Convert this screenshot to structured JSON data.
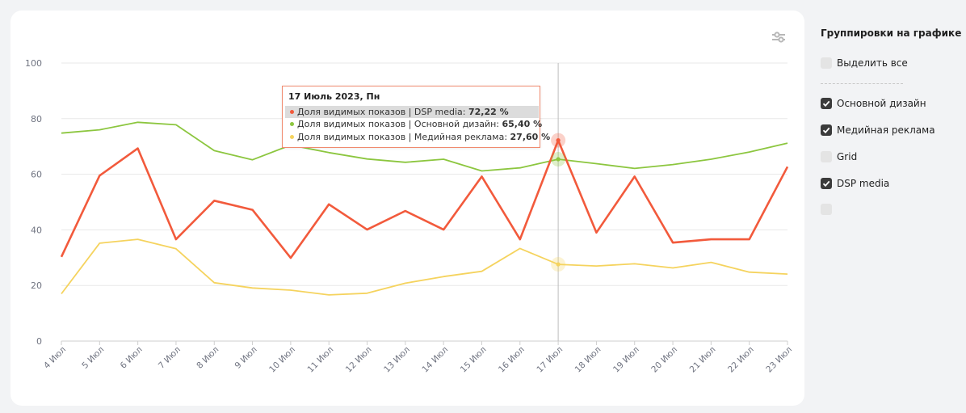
{
  "chart_data": {
    "type": "line",
    "categories": [
      "4 Июл",
      "5 Июл",
      "6 Июл",
      "7 Июл",
      "8 Июл",
      "9 Июл",
      "10 Июл",
      "11 Июл",
      "12 Июл",
      "13 Июл",
      "14 Июл",
      "15 Июл",
      "16 Июл",
      "17 Июл",
      "18 Июл",
      "19 Июл",
      "20 Июл",
      "21 Июл",
      "22 Июл",
      "23 Июл"
    ],
    "ylim": [
      0,
      100
    ],
    "yticks": [
      0,
      20,
      40,
      60,
      80,
      100
    ],
    "grid": true,
    "highlight_index": 13,
    "series": [
      {
        "name": "Основной дизайн",
        "color": "#8cc63f",
        "width": 1.8,
        "values": [
          74.8,
          76.0,
          78.7,
          77.8,
          68.5,
          65.2,
          70.5,
          67.8,
          65.5,
          64.3,
          65.4,
          61.2,
          62.3,
          65.4,
          63.8,
          62.1,
          63.5,
          65.4,
          68.0,
          71.2
        ]
      },
      {
        "name": "Медийная реклама",
        "color": "#f5d35e",
        "width": 1.8,
        "values": [
          17.0,
          35.2,
          36.6,
          33.2,
          21.0,
          19.1,
          18.3,
          16.6,
          17.2,
          20.8,
          23.2,
          25.1,
          33.3,
          27.6,
          27.0,
          27.8,
          26.3,
          28.3,
          24.8,
          24.1
        ]
      },
      {
        "name": "DSP media",
        "color": "#f25a3c",
        "width": 2.6,
        "values": [
          30.3,
          59.5,
          69.3,
          36.6,
          50.5,
          47.2,
          29.9,
          49.2,
          40.1,
          46.8,
          40.1,
          59.2,
          36.6,
          72.22,
          39.0,
          59.2,
          35.4,
          36.6,
          36.6,
          62.7
        ]
      }
    ]
  },
  "tooltip": {
    "title": "17 Июль 2023, Пн",
    "rows": [
      {
        "label": "Доля видимых показов | DSP media:",
        "value": "72,22 %",
        "color": "#f25a3c"
      },
      {
        "label": "Доля видимых показов | Основной дизайн:",
        "value": "65,40 %",
        "color": "#8cc63f"
      },
      {
        "label": "Доля видимых показов | Медийная реклама:",
        "value": "27,60 %",
        "color": "#f5d35e"
      }
    ]
  },
  "panel": {
    "title": "Группировки на графике",
    "select_all": {
      "label": "Выделить все",
      "checked": false
    },
    "items": [
      {
        "label": "Основной дизайн",
        "checked": true
      },
      {
        "label": "Медийная реклама",
        "checked": true
      },
      {
        "label": "Grid",
        "checked": false
      },
      {
        "label": "DSP media",
        "checked": true
      },
      {
        "label": "",
        "checked": false
      }
    ]
  },
  "icons": {
    "settings": "sliders-icon",
    "checkbox": "check-icon"
  }
}
